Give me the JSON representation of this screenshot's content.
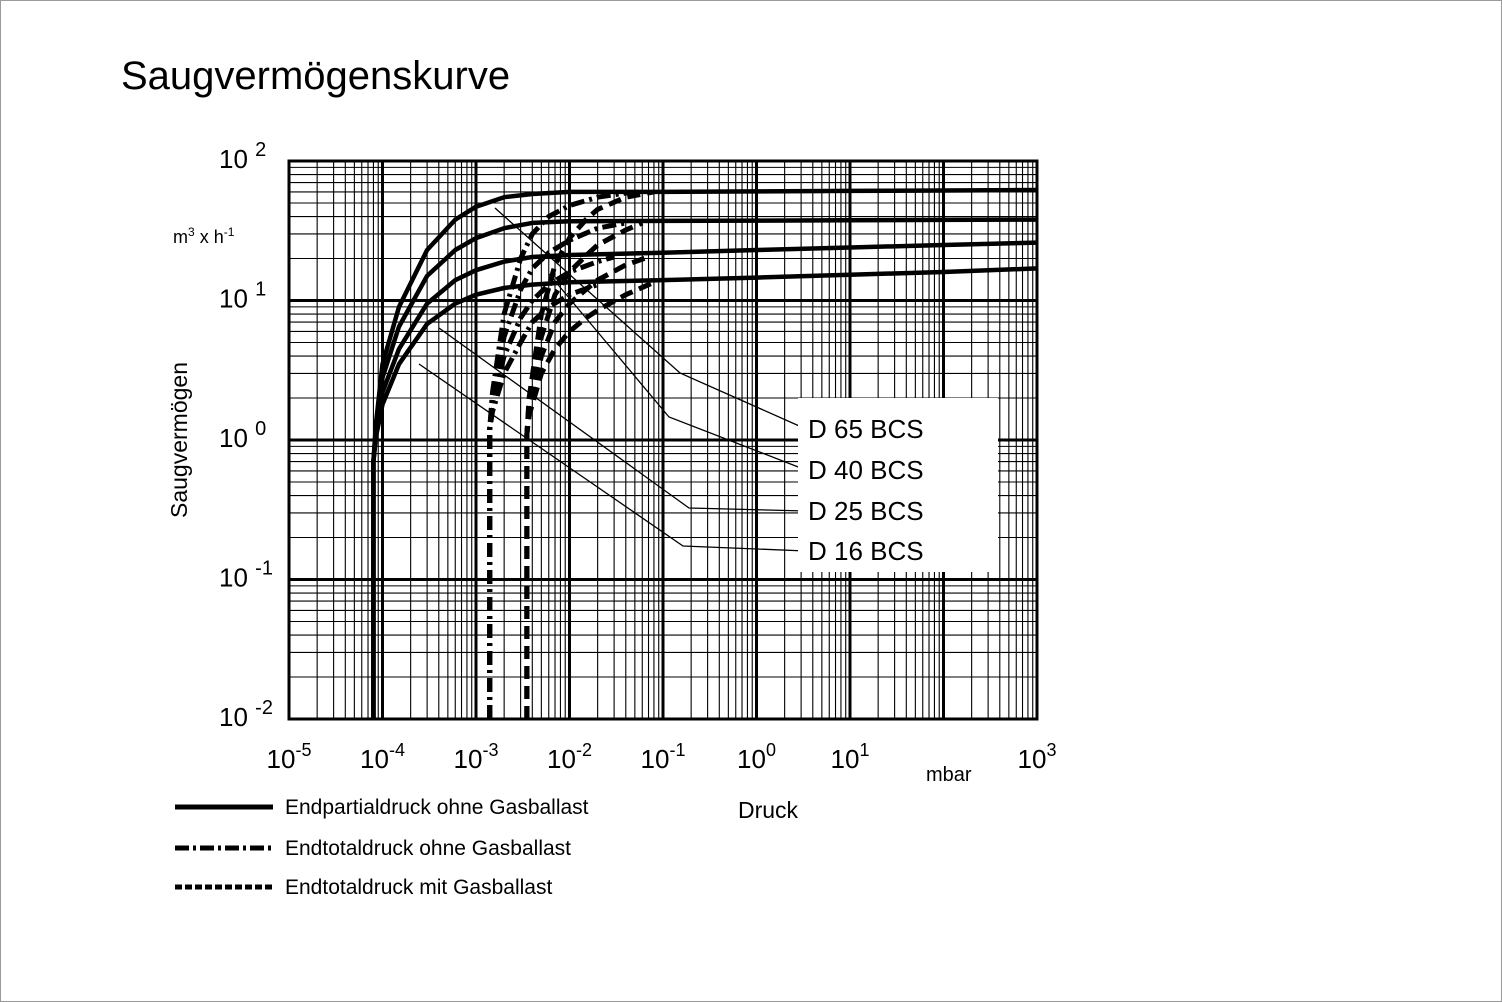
{
  "chart_data": {
    "type": "line",
    "title": "Saugvermögenskurve",
    "xlabel": "Druck",
    "xunit": "mbar",
    "ylabel": "Saugvermögen",
    "yunit": "m3 x h-1",
    "xscale": "log",
    "yscale": "log",
    "xlim": [
      1e-05,
      1000
    ],
    "ylim": [
      0.01,
      100
    ],
    "grid": true,
    "x_ticks": [
      {
        "base": "10",
        "exp": "-5"
      },
      {
        "base": "10",
        "exp": "-4"
      },
      {
        "base": "10",
        "exp": "-3"
      },
      {
        "base": "10",
        "exp": "-2"
      },
      {
        "base": "10",
        "exp": "-1"
      },
      {
        "base": "10",
        "exp": "0"
      },
      {
        "base": "10",
        "exp": "1"
      },
      {
        "base": "10",
        "exp": "3"
      }
    ],
    "y_ticks": [
      {
        "base": "10",
        "exp": "2"
      },
      {
        "base": "10",
        "exp": "1"
      },
      {
        "base": "10",
        "exp": "0"
      },
      {
        "base": "10",
        "exp": "-1"
      },
      {
        "base": "10",
        "exp": "-2"
      }
    ],
    "series": [
      {
        "name": "D 65 BCS",
        "style": "solid",
        "x": [
          8e-05,
          8e-05,
          8.5e-05,
          0.0001,
          0.00015,
          0.0003,
          0.0006,
          0.001,
          0.002,
          0.004,
          0.01,
          0.1,
          1,
          10,
          100,
          1000
        ],
        "y": [
          0.01,
          0.7,
          1.3,
          3.5,
          9,
          23,
          38,
          47,
          55,
          58,
          60,
          60,
          60.5,
          61,
          61.5,
          62
        ]
      },
      {
        "name": "D 40 BCS",
        "style": "solid",
        "x": [
          8e-05,
          8e-05,
          8.5e-05,
          0.0001,
          0.00015,
          0.0003,
          0.0006,
          0.001,
          0.002,
          0.004,
          0.01,
          0.1,
          1,
          10,
          100,
          1000
        ],
        "y": [
          0.01,
          0.7,
          1.2,
          2.8,
          6.5,
          15,
          23,
          28,
          33,
          36,
          37,
          37.2,
          37.4,
          37.6,
          37.8,
          38
        ]
      },
      {
        "name": "D 25 BCS",
        "style": "solid",
        "x": [
          8e-05,
          8e-05,
          8.5e-05,
          0.0001,
          0.00015,
          0.0003,
          0.0006,
          0.001,
          0.002,
          0.004,
          0.01,
          0.1,
          1,
          10,
          100,
          1000
        ],
        "y": [
          0.01,
          0.7,
          1.1,
          2.2,
          4.5,
          9.5,
          14,
          16.5,
          19,
          20.5,
          21.2,
          22,
          23,
          24,
          25,
          26
        ]
      },
      {
        "name": "D 16 BCS",
        "style": "solid",
        "x": [
          8e-05,
          8e-05,
          8.5e-05,
          0.0001,
          0.00015,
          0.0003,
          0.0006,
          0.001,
          0.002,
          0.004,
          0.01,
          0.1,
          1,
          10,
          100,
          1000
        ],
        "y": [
          0.01,
          0.7,
          1.05,
          1.8,
          3.5,
          6.8,
          9.5,
          11,
          12.3,
          13,
          13.5,
          14,
          14.6,
          15.3,
          16,
          17
        ]
      },
      {
        "name": "D 65 BCS",
        "style": "dashdot",
        "x": [
          0.0014,
          0.0014,
          0.0015,
          0.002,
          0.003,
          0.004,
          0.006,
          0.01,
          0.02,
          0.04,
          0.06
        ],
        "y": [
          0.01,
          1.2,
          2.2,
          8,
          20,
          30,
          40,
          48,
          55,
          59,
          60
        ]
      },
      {
        "name": "D 40 BCS",
        "style": "dashdot",
        "x": [
          0.0014,
          0.0014,
          0.0015,
          0.002,
          0.003,
          0.004,
          0.006,
          0.01,
          0.02,
          0.04
        ],
        "y": [
          0.01,
          1.2,
          2,
          5.5,
          12,
          17,
          22,
          27,
          33,
          36
        ]
      },
      {
        "name": "D 25 BCS",
        "style": "dashdot",
        "x": [
          0.0014,
          0.0014,
          0.0015,
          0.002,
          0.003,
          0.004,
          0.006,
          0.01,
          0.02,
          0.03
        ],
        "y": [
          0.01,
          1.2,
          1.8,
          4,
          7.5,
          10,
          13,
          16,
          19,
          20.5
        ]
      },
      {
        "name": "D 16 BCS",
        "style": "dashdot",
        "x": [
          0.0014,
          0.0014,
          0.0015,
          0.002,
          0.003,
          0.004,
          0.006,
          0.01,
          0.02
        ],
        "y": [
          0.01,
          1.2,
          1.6,
          3,
          5,
          7,
          9,
          11,
          13
        ]
      },
      {
        "name": "D 65 BCS",
        "style": "dashed",
        "x": [
          0.0035,
          0.0035,
          0.0037,
          0.005,
          0.007,
          0.01,
          0.015,
          0.02,
          0.04,
          0.08
        ],
        "y": [
          0.01,
          1.1,
          2,
          8,
          18,
          28,
          38,
          45,
          55,
          60
        ]
      },
      {
        "name": "D 40 BCS",
        "style": "dashed",
        "x": [
          0.0035,
          0.0035,
          0.0037,
          0.005,
          0.007,
          0.01,
          0.015,
          0.02,
          0.04,
          0.06
        ],
        "y": [
          0.01,
          1.1,
          1.9,
          5.5,
          11,
          16,
          21,
          25,
          32,
          36
        ]
      },
      {
        "name": "D 25 BCS",
        "style": "dashed",
        "x": [
          0.0035,
          0.0035,
          0.0037,
          0.005,
          0.007,
          0.01,
          0.015,
          0.02,
          0.04,
          0.07
        ],
        "y": [
          0.01,
          1.1,
          1.7,
          4,
          7,
          9.5,
          12,
          14,
          18,
          20.5
        ]
      },
      {
        "name": "D 16 BCS",
        "style": "dashed",
        "x": [
          0.0035,
          0.0035,
          0.0037,
          0.005,
          0.007,
          0.01,
          0.015,
          0.02,
          0.04,
          0.08
        ],
        "y": [
          0.01,
          1.1,
          1.5,
          3,
          4.5,
          6,
          7.5,
          8.5,
          11,
          13.5
        ]
      }
    ],
    "series_labels": [
      "D 65 BCS",
      "D 40 BCS",
      "D 25 BCS",
      "D 16 BCS"
    ],
    "legend": [
      {
        "label": "Endpartialdruck ohne Gasballast",
        "style": "solid"
      },
      {
        "label": "Endtotaldruck ohne Gasballast",
        "style": "dashdot"
      },
      {
        "label": "Endtotaldruck mit Gasballast",
        "style": "dashed"
      }
    ],
    "legend_position": "bottom-left",
    "colors": {
      "line": "#000000",
      "background": "#ffffff",
      "frame": "#9a9a9a"
    }
  }
}
